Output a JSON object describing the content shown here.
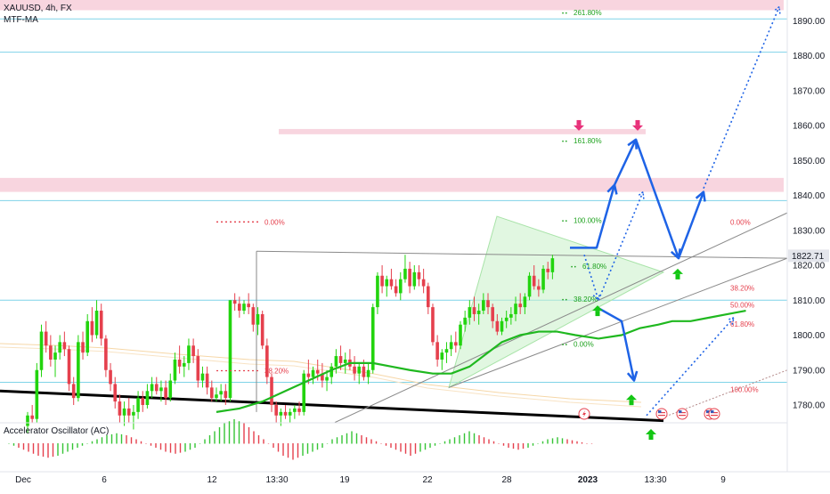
{
  "legend": {
    "symbol": "XAUUSD, 4h, FX",
    "indicator": "MTF-MA",
    "oscillator": "Accelerator Oscillator (AC)"
  },
  "price_badge": "1822.71",
  "colors": {
    "bull": "#22d40e",
    "bear": "#e5404d",
    "ma": "#1fb81f",
    "arrow": "#1e63e6",
    "zone": "#f8d5df",
    "hline": "#7fd3e8",
    "fib_green": "#1fa21f",
    "fib_red": "#e5404d",
    "trendline": "#000000"
  },
  "chart_data": {
    "type": "candlestick",
    "symbol": "XAUUSD",
    "timeframe": "4h",
    "ylim": [
      1773,
      1896
    ],
    "y_ticks": [
      "1780.00",
      "1790.00",
      "1800.00",
      "1810.00",
      "1820.00",
      "1830.00",
      "1840.00",
      "1850.00",
      "1860.00",
      "1870.00",
      "1880.00",
      "1890.00"
    ],
    "x_labels": [
      "Dec",
      "6",
      "12",
      "13:30",
      "19",
      "22",
      "28",
      "2023",
      "13:30",
      "9"
    ],
    "current_price": 1822.71,
    "candles": [
      [
        1774,
        1778,
        1772,
        1777
      ],
      [
        1777,
        1780,
        1775,
        1776
      ],
      [
        1776,
        1792,
        1775,
        1790
      ],
      [
        1790,
        1803,
        1788,
        1801
      ],
      [
        1801,
        1804,
        1795,
        1797
      ],
      [
        1797,
        1800,
        1791,
        1793
      ],
      [
        1793,
        1797,
        1788,
        1795
      ],
      [
        1795,
        1800,
        1793,
        1798
      ],
      [
        1798,
        1801,
        1794,
        1796
      ],
      [
        1796,
        1797,
        1784,
        1786
      ],
      [
        1786,
        1788,
        1780,
        1782
      ],
      [
        1782,
        1800,
        1781,
        1798
      ],
      [
        1798,
        1801,
        1793,
        1795
      ],
      [
        1795,
        1806,
        1794,
        1804
      ],
      [
        1804,
        1808,
        1798,
        1800
      ],
      [
        1800,
        1810,
        1799,
        1807
      ],
      [
        1807,
        1809,
        1797,
        1799
      ],
      [
        1799,
        1800,
        1788,
        1790
      ],
      [
        1790,
        1792,
        1784,
        1786
      ],
      [
        1786,
        1788,
        1779,
        1781
      ],
      [
        1781,
        1783,
        1775,
        1777
      ],
      [
        1777,
        1781,
        1774,
        1779
      ],
      [
        1779,
        1782,
        1775,
        1777
      ],
      [
        1777,
        1780,
        1773,
        1778
      ],
      [
        1778,
        1784,
        1776,
        1782
      ],
      [
        1782,
        1784,
        1778,
        1780
      ],
      [
        1780,
        1786,
        1779,
        1784
      ],
      [
        1784,
        1788,
        1782,
        1786
      ],
      [
        1786,
        1788,
        1783,
        1784
      ],
      [
        1784,
        1787,
        1781,
        1785
      ],
      [
        1785,
        1787,
        1780,
        1782
      ],
      [
        1782,
        1789,
        1781,
        1787
      ],
      [
        1787,
        1795,
        1786,
        1793
      ],
      [
        1793,
        1797,
        1789,
        1791
      ],
      [
        1791,
        1794,
        1788,
        1792
      ],
      [
        1792,
        1799,
        1790,
        1797
      ],
      [
        1797,
        1799,
        1792,
        1794
      ],
      [
        1794,
        1796,
        1785,
        1787
      ],
      [
        1787,
        1791,
        1785,
        1789
      ],
      [
        1789,
        1791,
        1783,
        1785
      ],
      [
        1785,
        1787,
        1781,
        1782
      ],
      [
        1782,
        1785,
        1781,
        1783
      ],
      [
        1783,
        1786,
        1781,
        1784
      ],
      [
        1784,
        1786,
        1780,
        1782
      ],
      [
        1782,
        1810,
        1781,
        1810
      ],
      [
        1810,
        1812,
        1807,
        1809
      ],
      [
        1809,
        1811,
        1805,
        1807
      ],
      [
        1807,
        1810,
        1806,
        1809
      ],
      [
        1809,
        1812,
        1806,
        1808
      ],
      [
        1808,
        1809,
        1801,
        1803
      ],
      [
        1803,
        1808,
        1800,
        1806
      ],
      [
        1806,
        1807,
        1796,
        1797
      ],
      [
        1797,
        1799,
        1786,
        1788
      ],
      [
        1788,
        1789,
        1778,
        1780
      ],
      [
        1780,
        1781,
        1775,
        1777
      ],
      [
        1777,
        1779,
        1774,
        1778
      ],
      [
        1778,
        1780,
        1776,
        1777
      ],
      [
        1777,
        1779,
        1775,
        1778
      ],
      [
        1778,
        1780,
        1776,
        1779
      ],
      [
        1779,
        1781,
        1777,
        1778
      ],
      [
        1778,
        1790,
        1777,
        1789
      ],
      [
        1789,
        1793,
        1786,
        1788
      ],
      [
        1788,
        1791,
        1786,
        1790
      ],
      [
        1790,
        1793,
        1787,
        1789
      ],
      [
        1789,
        1792,
        1785,
        1787
      ],
      [
        1787,
        1790,
        1784,
        1788
      ],
      [
        1788,
        1792,
        1786,
        1791
      ],
      [
        1791,
        1796,
        1789,
        1794
      ],
      [
        1794,
        1797,
        1790,
        1792
      ],
      [
        1792,
        1795,
        1789,
        1793
      ],
      [
        1793,
        1796,
        1790,
        1791
      ],
      [
        1791,
        1794,
        1787,
        1789
      ],
      [
        1789,
        1792,
        1786,
        1791
      ],
      [
        1791,
        1793,
        1787,
        1788
      ],
      [
        1788,
        1792,
        1786,
        1790
      ],
      [
        1790,
        1809,
        1789,
        1808
      ],
      [
        1808,
        1818,
        1806,
        1817
      ],
      [
        1817,
        1820,
        1812,
        1814
      ],
      [
        1814,
        1817,
        1811,
        1816
      ],
      [
        1816,
        1819,
        1813,
        1814
      ],
      [
        1814,
        1816,
        1811,
        1812
      ],
      [
        1812,
        1818,
        1810,
        1816
      ],
      [
        1816,
        1823,
        1815,
        1819
      ],
      [
        1819,
        1821,
        1812,
        1814
      ],
      [
        1814,
        1820,
        1813,
        1818
      ],
      [
        1818,
        1820,
        1814,
        1816
      ],
      [
        1816,
        1819,
        1812,
        1814
      ],
      [
        1814,
        1815,
        1806,
        1808
      ],
      [
        1808,
        1809,
        1797,
        1798
      ],
      [
        1798,
        1800,
        1791,
        1793
      ],
      [
        1793,
        1796,
        1790,
        1795
      ],
      [
        1795,
        1798,
        1792,
        1796
      ],
      [
        1796,
        1800,
        1794,
        1798
      ],
      [
        1798,
        1801,
        1795,
        1797
      ],
      [
        1797,
        1804,
        1796,
        1803
      ],
      [
        1803,
        1807,
        1801,
        1805
      ],
      [
        1805,
        1810,
        1803,
        1808
      ],
      [
        1808,
        1811,
        1804,
        1806
      ],
      [
        1806,
        1809,
        1803,
        1807
      ],
      [
        1807,
        1812,
        1806,
        1810
      ],
      [
        1810,
        1812,
        1806,
        1808
      ],
      [
        1808,
        1809,
        1802,
        1804
      ],
      [
        1804,
        1806,
        1800,
        1801
      ],
      [
        1801,
        1805,
        1800,
        1804
      ],
      [
        1804,
        1807,
        1802,
        1805
      ],
      [
        1805,
        1808,
        1803,
        1806
      ],
      [
        1806,
        1811,
        1804,
        1809
      ],
      [
        1809,
        1812,
        1806,
        1808
      ],
      [
        1808,
        1812,
        1806,
        1811
      ],
      [
        1811,
        1818,
        1810,
        1817
      ],
      [
        1817,
        1820,
        1813,
        1814
      ],
      [
        1814,
        1816,
        1811,
        1813
      ],
      [
        1813,
        1820,
        1812,
        1819
      ],
      [
        1819,
        1821,
        1816,
        1818
      ],
      [
        1818,
        1823,
        1816,
        1822
      ]
    ],
    "moving_average": [
      [
        41,
        1778
      ],
      [
        46,
        1779
      ],
      [
        51,
        1781
      ],
      [
        56,
        1784
      ],
      [
        61,
        1787
      ],
      [
        66,
        1790
      ],
      [
        70,
        1792
      ],
      [
        75,
        1792
      ],
      [
        79,
        1791
      ],
      [
        83,
        1790
      ],
      [
        88,
        1789
      ],
      [
        92,
        1789
      ],
      [
        96,
        1791
      ],
      [
        99,
        1794
      ],
      [
        103,
        1798
      ],
      [
        107,
        1800
      ],
      [
        111,
        1801
      ],
      [
        115,
        1801
      ],
      [
        119,
        1800
      ],
      [
        124,
        1799
      ],
      [
        129,
        1800
      ],
      [
        133,
        1802
      ],
      [
        137,
        1803
      ],
      [
        140,
        1804
      ],
      [
        144,
        1804
      ],
      [
        148,
        1805
      ],
      [
        152,
        1806
      ],
      [
        156,
        1807
      ]
    ],
    "zones": [
      {
        "name": "top-zone",
        "from": 1893,
        "to": 1896,
        "x": [
          0,
          880
        ]
      },
      {
        "name": "161.8-zone",
        "from": 1857.5,
        "to": 1859,
        "x": [
          313,
          725
        ]
      },
      {
        "name": "resistance-zone",
        "from": 1841,
        "to": 1845,
        "x": [
          0,
          880
        ]
      }
    ],
    "horizontal_lines": [
      1890.5,
      1881,
      1838.5,
      1810,
      1786.5
    ],
    "fib_levels": [
      {
        "label": "261.80%",
        "y": 1892.3,
        "color": "green",
        "x": 631
      },
      {
        "label": "161.80%",
        "y": 1855.7,
        "color": "green",
        "x": 631
      },
      {
        "label": "100.00%",
        "y": 1832.9,
        "color": "green",
        "x": 631
      },
      {
        "label": "61.80%",
        "y": 1819.7,
        "color": "green",
        "x": 641
      },
      {
        "label": "38.20%",
        "y": 1810.3,
        "color": "green",
        "x": 631
      },
      {
        "label": "0.00%",
        "y": 1797.5,
        "color": "green",
        "x": 631
      },
      {
        "label": "0.00%",
        "y": 1832.4,
        "color": "red",
        "x": 243
      },
      {
        "label": "38.20%",
        "y": 1789.8,
        "color": "red",
        "x": 243
      },
      {
        "label": "0.00%",
        "y": 1832.4,
        "color": "red",
        "x": 820
      },
      {
        "label": "38.20%",
        "y": 1813.5,
        "color": "red",
        "x": 820
      },
      {
        "label": "50.00%",
        "y": 1808.7,
        "color": "red",
        "x": 820
      },
      {
        "label": "61.80%",
        "y": 1803.2,
        "color": "red",
        "x": 820
      },
      {
        "label": "100.00%",
        "y": 1784.5,
        "color": "red",
        "x": 820
      }
    ],
    "trendlines": [
      {
        "from": [
          0,
          1784
        ],
        "to": [
          745,
          1775.5
        ],
        "color": "black",
        "width": 3
      },
      {
        "from": [
          376,
          1775
        ],
        "to": [
          884,
          1835
        ],
        "color": "gray",
        "width": 1
      },
      {
        "from": [
          504,
          1785
        ],
        "to": [
          884,
          1822
        ],
        "color": "gray",
        "width": 1
      },
      {
        "from": [
          288,
          1824
        ],
        "to": [
          884,
          1822
        ],
        "color": "gray",
        "width": 1
      },
      {
        "from": [
          740,
          1776
        ],
        "to": [
          884,
          1790
        ],
        "color": "gray-dotted",
        "width": 1
      }
    ],
    "vertical_line": {
      "x": 288,
      "from": 1824,
      "to": 1778
    },
    "triangle": [
      [
        558,
        1834
      ],
      [
        745,
        1818
      ],
      [
        504,
        1785
      ]
    ],
    "projection_solid": [
      [
        [
          640,
          1825
        ],
        [
          670,
          1825
        ],
        [
          690,
          1843
        ]
      ],
      [
        [
          690,
          1843
        ],
        [
          714,
          1856
        ]
      ],
      [
        [
          714,
          1856
        ],
        [
          762,
          1822
        ]
      ],
      [
        [
          762,
          1822
        ],
        [
          790,
          1841
        ]
      ],
      [
        [
          670,
          1808
        ],
        [
          698,
          1804
        ],
        [
          712,
          1787
        ]
      ]
    ],
    "projection_dotted": [
      [
        [
          656,
          1823
        ],
        [
          672,
          1810
        ]
      ],
      [
        [
          672,
          1810
        ],
        [
          722,
          1841
        ]
      ],
      [
        [
          726,
          1777
        ],
        [
          824,
          1805
        ]
      ],
      [
        [
          790,
          1842
        ],
        [
          875,
          1894
        ]
      ]
    ],
    "signal_arrows": [
      {
        "kind": "down",
        "x": 650,
        "y": 1859
      },
      {
        "kind": "down",
        "x": 716,
        "y": 1859
      },
      {
        "kind": "up",
        "x": 671,
        "y": 1808
      },
      {
        "kind": "up",
        "x": 761,
        "y": 1818.5
      },
      {
        "kind": "up",
        "x": 709,
        "y": 1782.5
      },
      {
        "kind": "up",
        "x": 731,
        "y": 1772.6
      }
    ],
    "event_icons": [
      {
        "kind": "lightning",
        "x": 656
      },
      {
        "kind": "flag",
        "x": 743
      },
      {
        "kind": "flag",
        "x": 766
      },
      {
        "kind": "flag",
        "x": 797
      },
      {
        "kind": "flag",
        "x": 802
      }
    ],
    "oscillator": {
      "name": "Accelerator Oscillator (AC)",
      "values": [
        0,
        -1,
        -2,
        -3,
        -3.5,
        -3,
        -2,
        -1,
        0,
        1,
        2,
        2.5,
        2,
        1,
        0,
        -1,
        -2,
        -2.5,
        -2,
        -1,
        1,
        3,
        5,
        6,
        5,
        3,
        1,
        -1,
        -3,
        -4,
        -3,
        -2,
        -1,
        1,
        2,
        3,
        2,
        1,
        0,
        -1,
        -2,
        -3,
        -2,
        -1,
        0,
        1,
        2,
        3,
        2,
        1,
        0,
        -1,
        -1.5,
        -1,
        0,
        1,
        1.5,
        1,
        0.5,
        0
      ]
    }
  }
}
